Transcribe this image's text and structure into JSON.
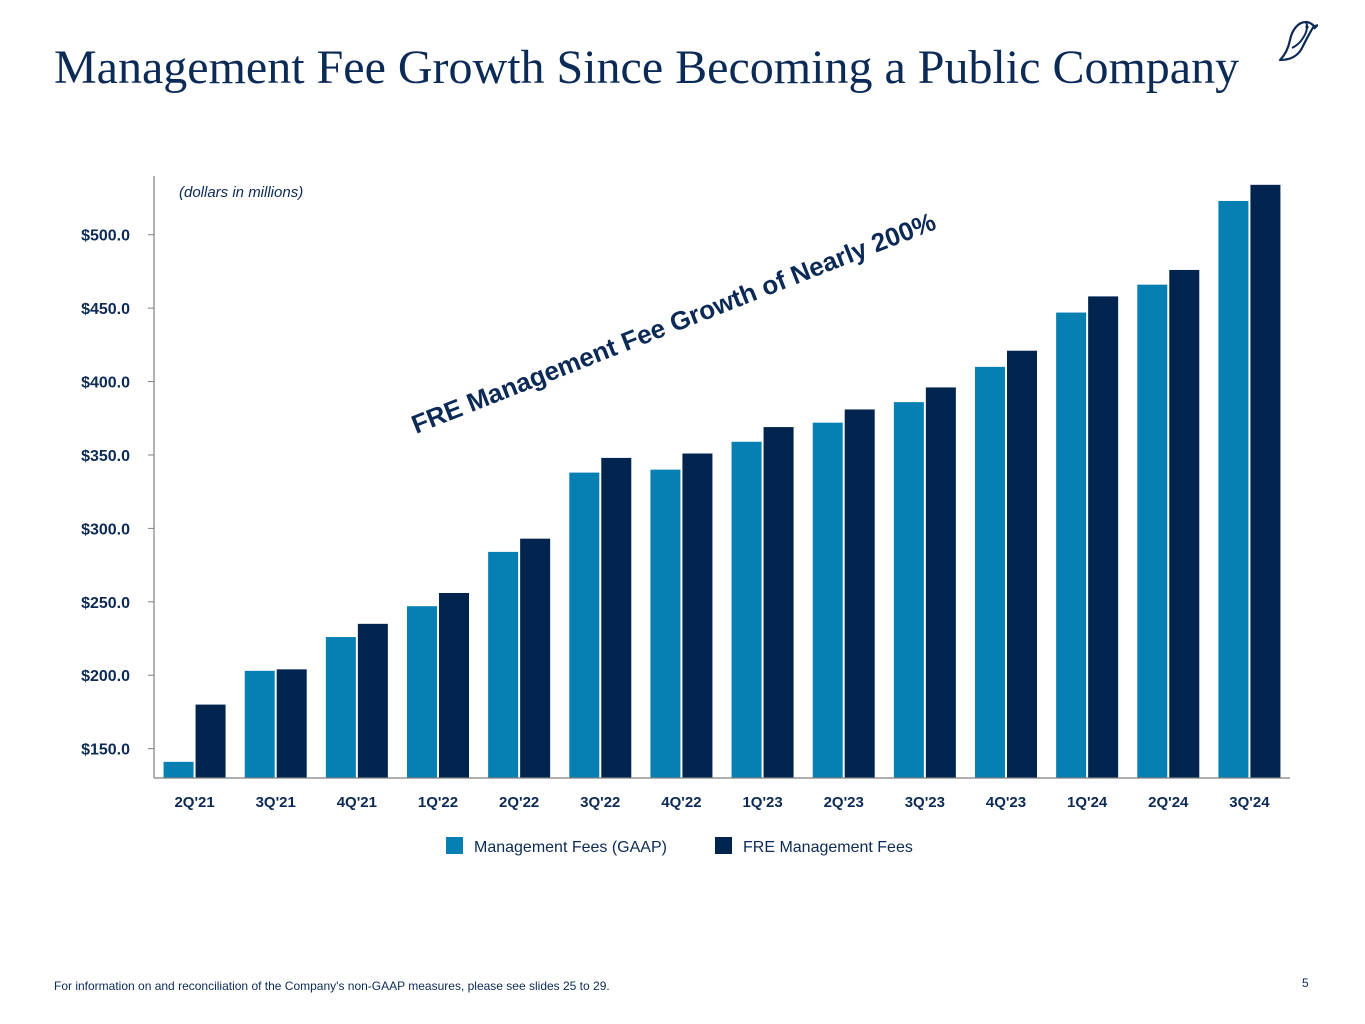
{
  "slide": {
    "title": "Management Fee Growth Since Becoming a Public Company",
    "footnote": "For information on and reconciliation of the Company's non-GAAP measures, please see slides 25 to 29.",
    "page_number": "5"
  },
  "colors": {
    "title": "#0c2a56",
    "gaap": "#067fb3",
    "fre": "#01244f",
    "axis": "#7f7f7f",
    "label": "#0c2a56"
  },
  "logo_icon": "bird-logo-icon",
  "chart_data": {
    "type": "bar",
    "unit_note": "(dollars in millions)",
    "annotation": "FRE Management Fee Growth of Nearly 200%",
    "categories": [
      "2Q'21",
      "3Q'21",
      "4Q'21",
      "1Q'22",
      "2Q'22",
      "3Q'22",
      "4Q'22",
      "1Q'23",
      "2Q'23",
      "3Q'23",
      "4Q'23",
      "1Q'24",
      "2Q'24",
      "3Q'24"
    ],
    "series": [
      {
        "name": "Management Fees (GAAP)",
        "values": [
          141,
          203,
          226,
          247,
          284,
          338,
          340,
          359,
          372,
          386,
          410,
          447,
          466,
          523
        ]
      },
      {
        "name": "FRE Management Fees",
        "values": [
          180,
          204,
          235,
          256,
          293,
          348,
          351,
          369,
          381,
          396,
          421,
          458,
          476,
          534
        ]
      }
    ],
    "ylim": [
      130,
      540
    ],
    "yticks": [
      150,
      200,
      250,
      300,
      350,
      400,
      450,
      500
    ],
    "ytick_labels": [
      "$150.0",
      "$200.0",
      "$250.0",
      "$300.0",
      "$350.0",
      "$400.0",
      "$450.0",
      "$500.0"
    ],
    "legend_position": "bottom",
    "grid": false
  }
}
